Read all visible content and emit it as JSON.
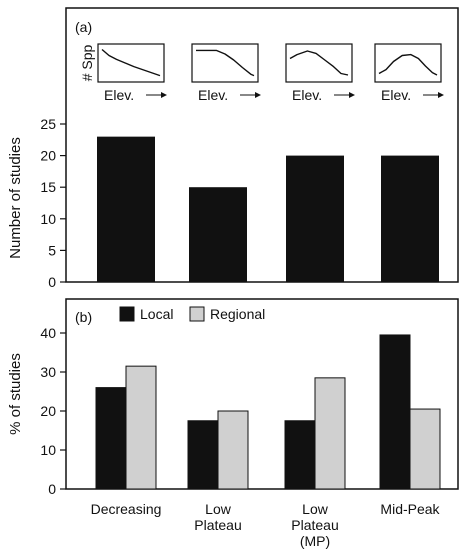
{
  "chart_data": [
    {
      "type": "bar",
      "panel_label": "(a)",
      "categories": [
        "Decreasing",
        "Low Plateau",
        "Low Plateau (MP)",
        "Mid-Peak"
      ],
      "values": [
        23,
        15,
        20,
        20
      ],
      "ylabel": "Number of studies",
      "ylim": [
        0,
        25
      ],
      "yticks": [
        "0",
        "5",
        "10",
        "15",
        "20",
        "25"
      ],
      "bar_color": "#111111",
      "insets": {
        "ylabel": "# Spp",
        "xlabel": "Elev.",
        "shapes": [
          "decreasing",
          "low-plateau",
          "low-plateau-mid-peak",
          "mid-peak"
        ]
      }
    },
    {
      "type": "bar",
      "panel_label": "(b)",
      "categories": [
        "Decreasing",
        "Low Plateau",
        "Low Plateau (MP)",
        "Mid-Peak"
      ],
      "category_lines": [
        [
          "Decreasing"
        ],
        [
          "Low",
          "Plateau"
        ],
        [
          "Low",
          "Plateau",
          "(MP)"
        ],
        [
          "Mid-Peak"
        ]
      ],
      "series": [
        {
          "name": "Local",
          "values": [
            26,
            17.5,
            17.5,
            39.5
          ],
          "color": "#111111"
        },
        {
          "name": "Regional",
          "values": [
            31.5,
            20,
            28.5,
            20.5
          ],
          "color": "#d0d0d0"
        }
      ],
      "ylabel": "% of studies",
      "ylim": [
        0,
        45
      ],
      "yticks": [
        "0",
        "10",
        "20",
        "30",
        "40"
      ],
      "legend_placement": "top-left"
    }
  ]
}
